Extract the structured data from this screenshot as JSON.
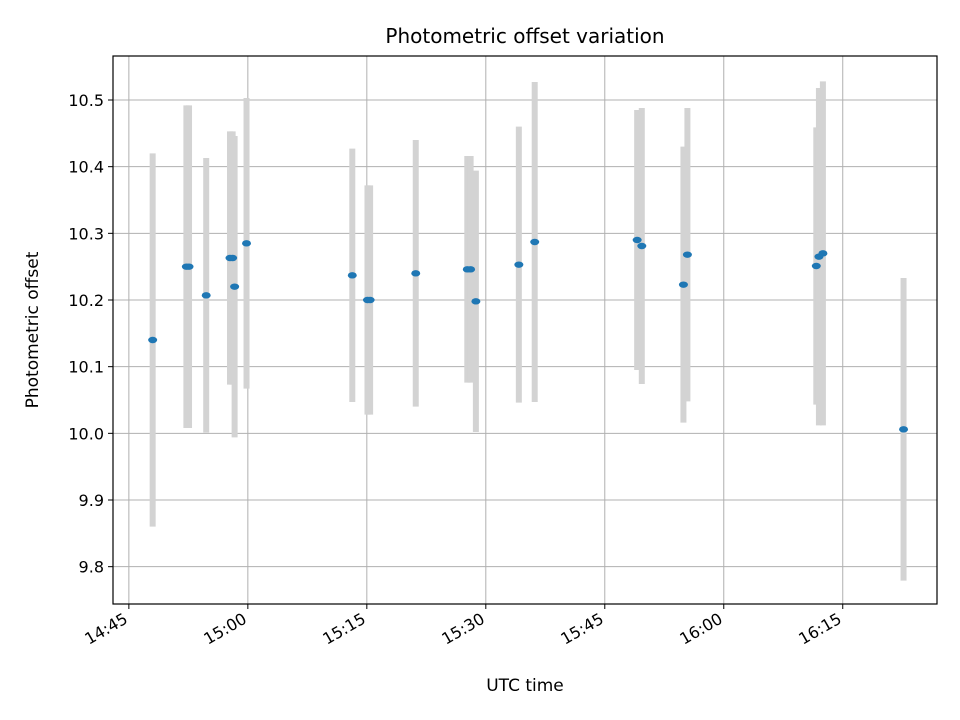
{
  "chart_data": {
    "type": "scatter",
    "title": "Photometric offset variation",
    "xlabel": "UTC time",
    "ylabel": "Photometric offset",
    "x_ticks": [
      "14:45",
      "15:00",
      "15:15",
      "15:30",
      "15:45",
      "16:00",
      "16:15"
    ],
    "y_ticks": [
      "9.8",
      "9.9",
      "10.0",
      "10.1",
      "10.2",
      "10.3",
      "10.4",
      "10.5"
    ],
    "xlim": [
      "14:43:00",
      "16:26:53"
    ],
    "ylim": [
      9.744,
      10.566
    ],
    "grid": true,
    "colors": {
      "point": "#1f77b4",
      "errorbar": "#d3d3d3",
      "grid": "#b0b0b0"
    },
    "series": [
      {
        "points": [
          {
            "t": "14:48:00",
            "y": 10.14,
            "err": 0.28
          },
          {
            "t": "14:52:15",
            "y": 10.25,
            "err": 0.242
          },
          {
            "t": "14:52:35",
            "y": 10.25,
            "err": 0.242
          },
          {
            "t": "14:54:45",
            "y": 10.207,
            "err": 0.206
          },
          {
            "t": "14:57:45",
            "y": 10.263,
            "err": 0.19
          },
          {
            "t": "14:58:05",
            "y": 10.263,
            "err": 0.19
          },
          {
            "t": "14:58:20",
            "y": 10.22,
            "err": 0.226
          },
          {
            "t": "14:59:50",
            "y": 10.285,
            "err": 0.218
          },
          {
            "t": "15:13:10",
            "y": 10.237,
            "err": 0.19
          },
          {
            "t": "15:15:05",
            "y": 10.2,
            "err": 0.172
          },
          {
            "t": "15:15:25",
            "y": 10.2,
            "err": 0.172
          },
          {
            "t": "15:21:10",
            "y": 10.24,
            "err": 0.2
          },
          {
            "t": "15:27:40",
            "y": 10.246,
            "err": 0.17
          },
          {
            "t": "15:28:05",
            "y": 10.246,
            "err": 0.17
          },
          {
            "t": "15:28:45",
            "y": 10.198,
            "err": 0.196
          },
          {
            "t": "15:34:10",
            "y": 10.253,
            "err": 0.207
          },
          {
            "t": "15:36:10",
            "y": 10.287,
            "err": 0.24
          },
          {
            "t": "15:49:05",
            "y": 10.29,
            "err": 0.195
          },
          {
            "t": "15:49:40",
            "y": 10.281,
            "err": 0.207
          },
          {
            "t": "15:54:55",
            "y": 10.223,
            "err": 0.207
          },
          {
            "t": "15:55:25",
            "y": 10.268,
            "err": 0.22
          },
          {
            "t": "16:11:40",
            "y": 10.251,
            "err": 0.208
          },
          {
            "t": "16:12:00",
            "y": 10.265,
            "err": 0.253
          },
          {
            "t": "16:12:30",
            "y": 10.27,
            "err": 0.258
          },
          {
            "t": "16:22:40",
            "y": 10.006,
            "err": 0.227
          }
        ]
      }
    ]
  }
}
